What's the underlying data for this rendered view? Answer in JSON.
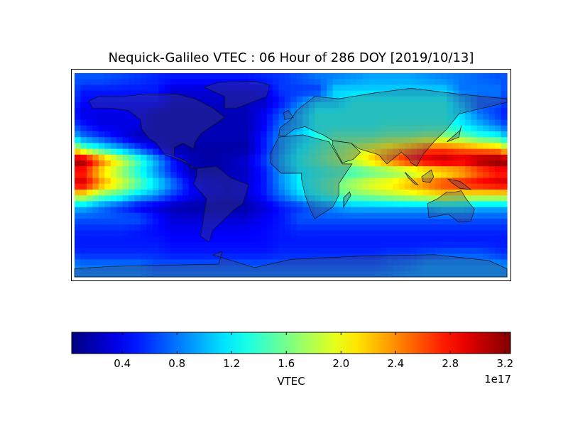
{
  "chart_data": {
    "type": "heatmap",
    "title": "Nequick-Galileo VTEC : 06 Hour of 286 DOY [2019/10/13]",
    "colormap": "jet",
    "colorbar": {
      "label": "VTEC",
      "multiplier_label": "1e17",
      "range": [
        0.03,
        3.24
      ],
      "ticks": [
        0.4,
        0.8,
        1.2,
        1.6,
        2.0,
        2.4,
        2.8,
        3.2
      ],
      "tick_labels": [
        "0.4",
        "0.8",
        "1.2",
        "1.6",
        "2.0",
        "2.4",
        "2.8",
        "3.2"
      ],
      "placement": "bottom"
    },
    "units_scale": 1e+17,
    "lon_centers": [
      -172.5,
      -157.5,
      -142.5,
      -127.5,
      -112.5,
      -97.5,
      -82.5,
      -67.5,
      -52.5,
      -37.5,
      -22.5,
      -7.5,
      7.5,
      22.5,
      37.5,
      52.5,
      67.5,
      82.5,
      97.5,
      112.5,
      127.5,
      142.5,
      157.5,
      172.5
    ],
    "lat_centers": [
      85,
      75,
      65,
      55,
      45,
      35,
      25,
      15,
      5,
      -5,
      -15,
      -25,
      -35,
      -45,
      -55,
      -65,
      -75,
      -85
    ],
    "values": [
      [
        0.7,
        0.7,
        0.65,
        0.6,
        0.55,
        0.5,
        0.5,
        0.5,
        0.5,
        0.5,
        0.55,
        0.6,
        0.7,
        0.8,
        0.85,
        0.9,
        0.95,
        0.95,
        0.95,
        0.9,
        0.85,
        0.8,
        0.75,
        0.7
      ],
      [
        0.5,
        0.5,
        0.5,
        0.5,
        0.5,
        0.3,
        0.3,
        0.3,
        0.3,
        0.3,
        0.35,
        0.6,
        0.6,
        0.6,
        1.1,
        1.1,
        1.1,
        1.1,
        1.1,
        1.1,
        1.1,
        0.8,
        0.8,
        0.8
      ],
      [
        0.45,
        0.45,
        0.45,
        0.45,
        0.45,
        0.25,
        0.25,
        0.25,
        0.25,
        0.25,
        0.25,
        0.5,
        0.8,
        1.1,
        1.1,
        1.3,
        1.3,
        1.3,
        1.3,
        1.3,
        1.3,
        1.0,
        0.7,
        0.7
      ],
      [
        0.35,
        0.35,
        0.35,
        0.35,
        0.2,
        0.2,
        0.2,
        0.2,
        0.2,
        0.2,
        0.4,
        0.7,
        1.0,
        1.3,
        1.3,
        1.3,
        1.3,
        1.3,
        1.3,
        1.3,
        1.3,
        1.1,
        0.8,
        0.6
      ],
      [
        0.5,
        0.35,
        0.35,
        0.35,
        0.2,
        0.2,
        0.2,
        0.2,
        0.2,
        0.2,
        0.4,
        0.8,
        1.0,
        1.3,
        1.3,
        1.3,
        1.3,
        1.35,
        1.35,
        1.35,
        1.35,
        1.2,
        1.0,
        0.8
      ],
      [
        0.8,
        0.6,
        0.4,
        0.2,
        0.2,
        0.2,
        0.2,
        0.2,
        0.2,
        0.2,
        0.5,
        0.9,
        1.1,
        1.3,
        1.5,
        1.5,
        1.5,
        1.6,
        1.6,
        1.7,
        1.7,
        1.6,
        1.4,
        1.3
      ],
      [
        1.6,
        1.3,
        1.0,
        0.7,
        0.4,
        0.15,
        0.15,
        0.15,
        0.15,
        0.15,
        0.5,
        0.9,
        1.2,
        1.4,
        1.6,
        1.8,
        2.0,
        2.2,
        2.4,
        2.6,
        2.6,
        2.5,
        2.4,
        2.3
      ],
      [
        3.2,
        2.5,
        2.0,
        1.5,
        1.0,
        0.5,
        0.2,
        0.15,
        0.2,
        0.3,
        0.6,
        1.0,
        1.3,
        1.5,
        1.7,
        1.9,
        2.2,
        2.5,
        2.8,
        3.0,
        3.1,
        3.0,
        3.2,
        3.3
      ],
      [
        2.7,
        2.1,
        1.7,
        1.3,
        0.9,
        0.5,
        0.2,
        0.15,
        0.2,
        0.25,
        0.5,
        0.9,
        1.2,
        1.3,
        1.4,
        1.4,
        1.5,
        1.6,
        1.7,
        1.9,
        2.0,
        2.2,
        2.5,
        2.7
      ],
      [
        3.0,
        2.4,
        2.0,
        1.6,
        1.2,
        0.8,
        0.4,
        0.3,
        0.25,
        0.3,
        0.5,
        0.9,
        1.2,
        1.4,
        1.6,
        1.8,
        2.0,
        2.1,
        2.3,
        2.5,
        2.7,
        2.8,
        2.9,
        3.0
      ],
      [
        2.0,
        1.6,
        1.4,
        1.1,
        0.9,
        0.6,
        0.4,
        0.3,
        0.25,
        0.3,
        0.5,
        0.8,
        1.1,
        1.3,
        1.5,
        1.6,
        1.7,
        1.8,
        1.9,
        2.0,
        2.1,
        2.0,
        2.0,
        2.0
      ],
      [
        1.0,
        0.8,
        0.6,
        0.4,
        0.3,
        0.2,
        0.15,
        0.15,
        0.15,
        0.15,
        0.3,
        0.5,
        0.6,
        0.8,
        0.9,
        1.0,
        1.0,
        1.0,
        1.0,
        1.0,
        1.1,
        1.1,
        1.0,
        1.0
      ],
      [
        0.7,
        0.7,
        0.7,
        0.7,
        0.5,
        0.3,
        0.3,
        0.3,
        0.3,
        0.3,
        0.4,
        0.5,
        0.7,
        0.7,
        0.7,
        0.7,
        0.7,
        0.7,
        0.7,
        0.7,
        0.7,
        0.7,
        0.7,
        0.7
      ],
      [
        0.55,
        0.55,
        0.55,
        0.5,
        0.45,
        0.4,
        0.4,
        0.4,
        0.4,
        0.4,
        0.45,
        0.5,
        0.55,
        0.55,
        0.55,
        0.55,
        0.55,
        0.55,
        0.55,
        0.55,
        0.55,
        0.55,
        0.55,
        0.55
      ],
      [
        0.5,
        0.5,
        0.5,
        0.5,
        0.5,
        0.45,
        0.45,
        0.45,
        0.45,
        0.45,
        0.45,
        0.5,
        0.5,
        0.5,
        0.5,
        0.5,
        0.5,
        0.5,
        0.5,
        0.5,
        0.5,
        0.5,
        0.5,
        0.5
      ],
      [
        0.55,
        0.55,
        0.55,
        0.55,
        0.55,
        0.5,
        0.5,
        0.5,
        0.5,
        0.5,
        0.5,
        0.55,
        0.55,
        0.55,
        0.55,
        0.55,
        0.55,
        0.6,
        0.6,
        0.65,
        0.7,
        0.7,
        0.7,
        0.6
      ],
      [
        0.8,
        0.8,
        0.8,
        0.8,
        0.7,
        0.7,
        0.7,
        0.7,
        0.7,
        0.7,
        0.7,
        0.7,
        0.7,
        0.7,
        0.7,
        0.7,
        0.7,
        0.75,
        0.8,
        0.9,
        0.9,
        0.9,
        0.9,
        0.9
      ],
      [
        0.85,
        0.85,
        0.85,
        0.85,
        0.8,
        0.8,
        0.8,
        0.8,
        0.8,
        0.8,
        0.8,
        0.8,
        0.8,
        0.8,
        0.8,
        0.8,
        0.8,
        0.85,
        0.9,
        0.9,
        0.9,
        0.9,
        0.9,
        0.9
      ]
    ]
  }
}
